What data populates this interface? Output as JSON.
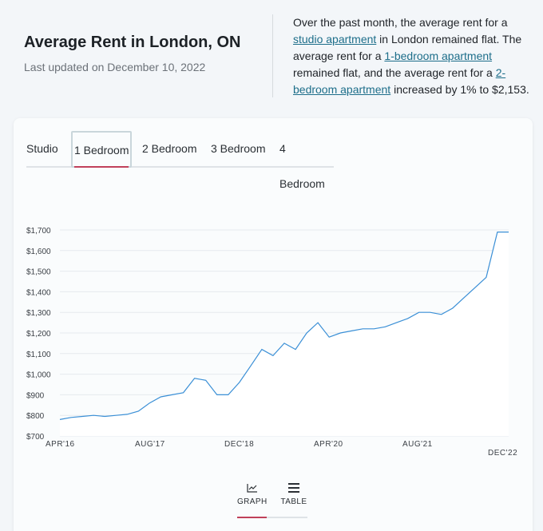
{
  "header": {
    "title": "Average Rent in London, ON",
    "updated": "Last updated on December 10, 2022"
  },
  "summary": {
    "t1": "Over the past month, the average rent for a ",
    "link1": "studio apartment",
    "t2": " in London remained flat. The average rent for a ",
    "link2": "1-bedroom apartment",
    "t3": " remained flat, and the average rent for a ",
    "link3": "2-bedroom apartment",
    "t4": " increased by 1% to $2,153."
  },
  "tabs": [
    {
      "label": "Studio",
      "active": false
    },
    {
      "label": "1 Bedroom",
      "active": true
    },
    {
      "label": "2 Bedroom",
      "active": false
    },
    {
      "label": "3 Bedroom",
      "active": false
    },
    {
      "label": "4 Bedroom",
      "active": false
    }
  ],
  "view_toggle": {
    "graph_label": "GRAPH",
    "table_label": "TABLE",
    "graph_icon": "line-chart-icon",
    "table_icon": "list-icon",
    "selected": "graph"
  },
  "colors": {
    "line": "#3a8fd6",
    "accent": "#c0405a",
    "link": "#1d6e8a"
  },
  "chart_data": {
    "type": "area",
    "title": "",
    "xlabel": "",
    "ylabel": "",
    "ylim": [
      700,
      1700
    ],
    "y_ticks": [
      "$700",
      "$800",
      "$900",
      "$1,000",
      "$1,100",
      "$1,200",
      "$1,300",
      "$1,400",
      "$1,500",
      "$1,600",
      "$1,700"
    ],
    "x_ticks": [
      "APR'16",
      "AUG'17",
      "DEC'18",
      "APR'20",
      "AUG'21",
      "DEC'22"
    ],
    "series": [
      {
        "name": "1 Bedroom",
        "x": [
          "2016-04",
          "2016-06",
          "2016-08",
          "2016-10",
          "2016-12",
          "2017-02",
          "2017-04",
          "2017-06",
          "2017-08",
          "2017-10",
          "2017-12",
          "2018-02",
          "2018-04",
          "2018-06",
          "2018-08",
          "2018-10",
          "2018-12",
          "2019-02",
          "2019-04",
          "2019-06",
          "2019-08",
          "2019-10",
          "2019-12",
          "2020-02",
          "2020-04",
          "2020-06",
          "2020-08",
          "2020-10",
          "2020-12",
          "2021-02",
          "2021-04",
          "2021-06",
          "2021-08",
          "2021-10",
          "2021-12",
          "2022-02",
          "2022-04",
          "2022-06",
          "2022-08",
          "2022-10",
          "2022-12"
        ],
        "values": [
          780,
          790,
          795,
          800,
          795,
          800,
          805,
          820,
          860,
          890,
          900,
          910,
          980,
          970,
          900,
          900,
          960,
          1040,
          1120,
          1090,
          1150,
          1120,
          1200,
          1250,
          1180,
          1200,
          1210,
          1220,
          1220,
          1230,
          1250,
          1270,
          1300,
          1300,
          1290,
          1320,
          1370,
          1420,
          1470,
          1690,
          1690
        ]
      }
    ]
  }
}
